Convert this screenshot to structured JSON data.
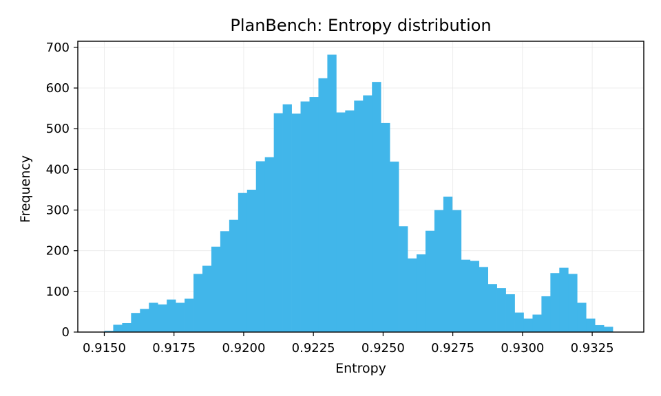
{
  "chart_data": {
    "type": "bar",
    "title": "PlanBench: Entropy distribution",
    "xlabel": "Entropy",
    "ylabel": "Frequency",
    "xlim": [
      0.91405,
      0.93435
    ],
    "ylim": [
      0,
      715
    ],
    "grid": true,
    "bar_color": "#41b6ea",
    "x_ticks": [
      0.915,
      0.9175,
      0.92,
      0.9225,
      0.925,
      0.9275,
      0.93,
      0.9325
    ],
    "x_tick_labels": [
      "0.9150",
      "0.9175",
      "0.9200",
      "0.9225",
      "0.9250",
      "0.9275",
      "0.9300",
      "0.9325"
    ],
    "y_ticks": [
      0,
      100,
      200,
      300,
      400,
      500,
      600,
      700
    ],
    "y_tick_labels": [
      "0",
      "100",
      "200",
      "300",
      "400",
      "500",
      "600",
      "700"
    ],
    "bin_start": 0.915,
    "bin_width": 0.00032,
    "values": [
      3,
      18,
      22,
      47,
      57,
      72,
      68,
      80,
      72,
      82,
      143,
      163,
      210,
      248,
      276,
      342,
      350,
      420,
      430,
      538,
      560,
      537,
      567,
      578,
      624,
      682,
      540,
      545,
      569,
      582,
      615,
      514,
      419,
      260,
      181,
      191,
      249,
      300,
      333,
      300,
      178,
      175,
      160,
      118,
      108,
      93,
      48,
      33,
      43,
      88,
      145,
      158,
      143,
      72,
      33,
      17,
      13
    ]
  }
}
